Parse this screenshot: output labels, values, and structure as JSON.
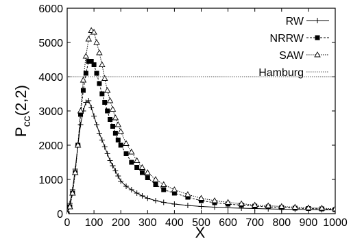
{
  "chart_data": {
    "type": "line",
    "xlabel": "X",
    "ylabel": "P",
    "ylabel_sub": "cc",
    "ylabel_args": "(2,2)",
    "xlim": [
      0,
      1000
    ],
    "ylim": [
      0,
      6000
    ],
    "x_ticks": [
      "0",
      "100",
      "200",
      "300",
      "400",
      "500",
      "600",
      "700",
      "800",
      "900",
      "1000"
    ],
    "y_ticks": [
      "0",
      "1000",
      "2000",
      "3000",
      "4000",
      "5000",
      "6000"
    ],
    "grid": false,
    "legend_position": "top-right",
    "reference_line": {
      "name": "Hamburg",
      "y": 4000
    },
    "series": [
      {
        "name": "RW",
        "marker": "plus",
        "x": [
          0,
          10,
          20,
          30,
          40,
          50,
          60,
          70,
          80,
          90,
          100,
          110,
          120,
          130,
          140,
          150,
          160,
          170,
          180,
          190,
          200,
          220,
          240,
          260,
          280,
          300,
          330,
          360,
          400,
          450,
          500,
          550,
          600,
          650,
          700,
          750,
          800,
          850,
          900,
          950,
          1000
        ],
        "y": [
          0,
          300,
          700,
          1300,
          2000,
          2600,
          3000,
          3250,
          3300,
          3100,
          2850,
          2600,
          2350,
          2150,
          1950,
          1750,
          1550,
          1400,
          1250,
          1100,
          950,
          800,
          700,
          600,
          520,
          450,
          380,
          330,
          280,
          240,
          210,
          190,
          170,
          160,
          150,
          140,
          130,
          125,
          120,
          115,
          110
        ]
      },
      {
        "name": "NRRW",
        "marker": "square",
        "x": [
          0,
          10,
          20,
          30,
          40,
          50,
          60,
          70,
          80,
          90,
          100,
          110,
          120,
          130,
          140,
          150,
          160,
          170,
          180,
          190,
          200,
          220,
          240,
          260,
          280,
          300,
          330,
          360,
          400,
          450,
          500,
          550,
          600,
          650,
          700,
          750,
          800,
          850,
          900,
          950,
          1000
        ],
        "y": [
          0,
          200,
          600,
          1200,
          2000,
          2900,
          3600,
          4100,
          4450,
          4450,
          4350,
          4100,
          3800,
          3500,
          3250,
          3000,
          2750,
          2550,
          2350,
          2150,
          2000,
          1750,
          1500,
          1350,
          1200,
          1050,
          850,
          700,
          600,
          480,
          380,
          320,
          280,
          250,
          220,
          200,
          180,
          160,
          150,
          140,
          120
        ]
      },
      {
        "name": "SAW",
        "marker": "triangle",
        "x": [
          0,
          10,
          20,
          30,
          40,
          50,
          60,
          70,
          80,
          90,
          100,
          110,
          120,
          130,
          140,
          150,
          160,
          170,
          180,
          190,
          200,
          220,
          240,
          260,
          280,
          300,
          330,
          360,
          400,
          450,
          500,
          550,
          600,
          650,
          700,
          750,
          800,
          850,
          900,
          950,
          1000
        ],
        "y": [
          0,
          200,
          600,
          1200,
          2000,
          3000,
          3900,
          4600,
          5100,
          5350,
          5300,
          5000,
          4700,
          4350,
          3950,
          3600,
          3300,
          3050,
          2800,
          2600,
          2400,
          2050,
          1800,
          1550,
          1350,
          1200,
          1000,
          850,
          700,
          560,
          450,
          380,
          330,
          290,
          250,
          230,
          210,
          190,
          170,
          160,
          140
        ]
      }
    ]
  }
}
